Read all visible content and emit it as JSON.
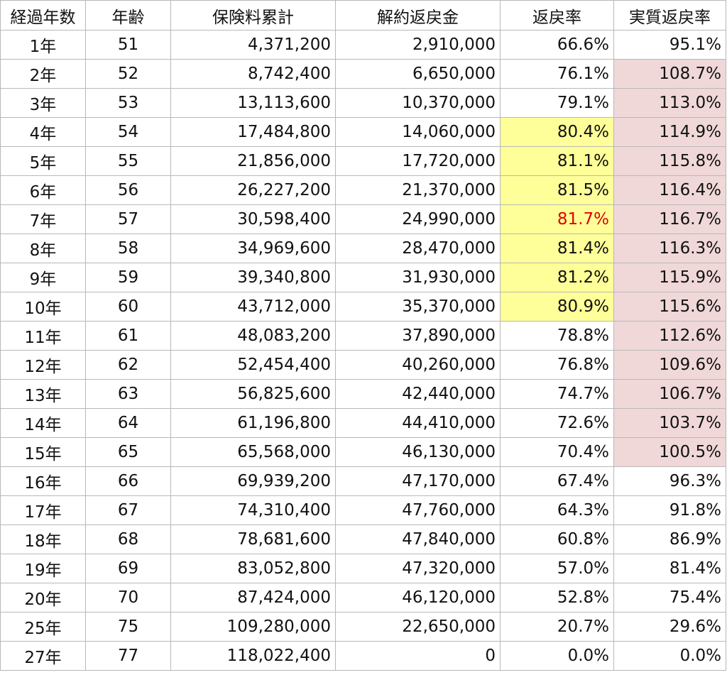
{
  "headers": [
    "経過年数",
    "年齢",
    "保険料累計",
    "解約返戻金",
    "返戻率",
    "実質返戻率"
  ],
  "rows": [
    {
      "year": "1年",
      "age": "51",
      "premium": "4,371,200",
      "surrender": "2,910,000",
      "rate": "66.6%",
      "real_rate": "95.1%",
      "rate_hl": "",
      "real_hl": "",
      "rate_color": ""
    },
    {
      "year": "2年",
      "age": "52",
      "premium": "8,742,400",
      "surrender": "6,650,000",
      "rate": "76.1%",
      "real_rate": "108.7%",
      "rate_hl": "",
      "real_hl": "pink",
      "rate_color": ""
    },
    {
      "year": "3年",
      "age": "53",
      "premium": "13,113,600",
      "surrender": "10,370,000",
      "rate": "79.1%",
      "real_rate": "113.0%",
      "rate_hl": "",
      "real_hl": "pink",
      "rate_color": ""
    },
    {
      "year": "4年",
      "age": "54",
      "premium": "17,484,800",
      "surrender": "14,060,000",
      "rate": "80.4%",
      "real_rate": "114.9%",
      "rate_hl": "yellow",
      "real_hl": "pink",
      "rate_color": ""
    },
    {
      "year": "5年",
      "age": "55",
      "premium": "21,856,000",
      "surrender": "17,720,000",
      "rate": "81.1%",
      "real_rate": "115.8%",
      "rate_hl": "yellow",
      "real_hl": "pink",
      "rate_color": ""
    },
    {
      "year": "6年",
      "age": "56",
      "premium": "26,227,200",
      "surrender": "21,370,000",
      "rate": "81.5%",
      "real_rate": "116.4%",
      "rate_hl": "yellow",
      "real_hl": "pink",
      "rate_color": ""
    },
    {
      "year": "7年",
      "age": "57",
      "premium": "30,598,400",
      "surrender": "24,990,000",
      "rate": "81.7%",
      "real_rate": "116.7%",
      "rate_hl": "yellow",
      "real_hl": "pink",
      "rate_color": "red"
    },
    {
      "year": "8年",
      "age": "58",
      "premium": "34,969,600",
      "surrender": "28,470,000",
      "rate": "81.4%",
      "real_rate": "116.3%",
      "rate_hl": "yellow",
      "real_hl": "pink",
      "rate_color": ""
    },
    {
      "year": "9年",
      "age": "59",
      "premium": "39,340,800",
      "surrender": "31,930,000",
      "rate": "81.2%",
      "real_rate": "115.9%",
      "rate_hl": "yellow",
      "real_hl": "pink",
      "rate_color": ""
    },
    {
      "year": "10年",
      "age": "60",
      "premium": "43,712,000",
      "surrender": "35,370,000",
      "rate": "80.9%",
      "real_rate": "115.6%",
      "rate_hl": "yellow",
      "real_hl": "pink",
      "rate_color": ""
    },
    {
      "year": "11年",
      "age": "61",
      "premium": "48,083,200",
      "surrender": "37,890,000",
      "rate": "78.8%",
      "real_rate": "112.6%",
      "rate_hl": "",
      "real_hl": "pink",
      "rate_color": ""
    },
    {
      "year": "12年",
      "age": "62",
      "premium": "52,454,400",
      "surrender": "40,260,000",
      "rate": "76.8%",
      "real_rate": "109.6%",
      "rate_hl": "",
      "real_hl": "pink",
      "rate_color": ""
    },
    {
      "year": "13年",
      "age": "63",
      "premium": "56,825,600",
      "surrender": "42,440,000",
      "rate": "74.7%",
      "real_rate": "106.7%",
      "rate_hl": "",
      "real_hl": "pink",
      "rate_color": ""
    },
    {
      "year": "14年",
      "age": "64",
      "premium": "61,196,800",
      "surrender": "44,410,000",
      "rate": "72.6%",
      "real_rate": "103.7%",
      "rate_hl": "",
      "real_hl": "pink",
      "rate_color": ""
    },
    {
      "year": "15年",
      "age": "65",
      "premium": "65,568,000",
      "surrender": "46,130,000",
      "rate": "70.4%",
      "real_rate": "100.5%",
      "rate_hl": "",
      "real_hl": "pink",
      "rate_color": ""
    },
    {
      "year": "16年",
      "age": "66",
      "premium": "69,939,200",
      "surrender": "47,170,000",
      "rate": "67.4%",
      "real_rate": "96.3%",
      "rate_hl": "",
      "real_hl": "",
      "rate_color": ""
    },
    {
      "year": "17年",
      "age": "67",
      "premium": "74,310,400",
      "surrender": "47,760,000",
      "rate": "64.3%",
      "real_rate": "91.8%",
      "rate_hl": "",
      "real_hl": "",
      "rate_color": ""
    },
    {
      "year": "18年",
      "age": "68",
      "premium": "78,681,600",
      "surrender": "47,840,000",
      "rate": "60.8%",
      "real_rate": "86.9%",
      "rate_hl": "",
      "real_hl": "",
      "rate_color": ""
    },
    {
      "year": "19年",
      "age": "69",
      "premium": "83,052,800",
      "surrender": "47,320,000",
      "rate": "57.0%",
      "real_rate": "81.4%",
      "rate_hl": "",
      "real_hl": "",
      "rate_color": ""
    },
    {
      "year": "20年",
      "age": "70",
      "premium": "87,424,000",
      "surrender": "46,120,000",
      "rate": "52.8%",
      "real_rate": "75.4%",
      "rate_hl": "",
      "real_hl": "",
      "rate_color": ""
    },
    {
      "year": "25年",
      "age": "75",
      "premium": "109,280,000",
      "surrender": "22,650,000",
      "rate": "20.7%",
      "real_rate": "29.6%",
      "rate_hl": "",
      "real_hl": "",
      "rate_color": ""
    },
    {
      "year": "27年",
      "age": "77",
      "premium": "118,022,400",
      "surrender": "0",
      "rate": "0.0%",
      "real_rate": "0.0%",
      "rate_hl": "",
      "real_hl": "",
      "rate_color": ""
    }
  ],
  "colors": {
    "highlight_yellow": "#ffff99",
    "highlight_pink": "#f0d8d8",
    "peak_text_red": "#e00000",
    "grid_line": "#b8b8b8"
  }
}
